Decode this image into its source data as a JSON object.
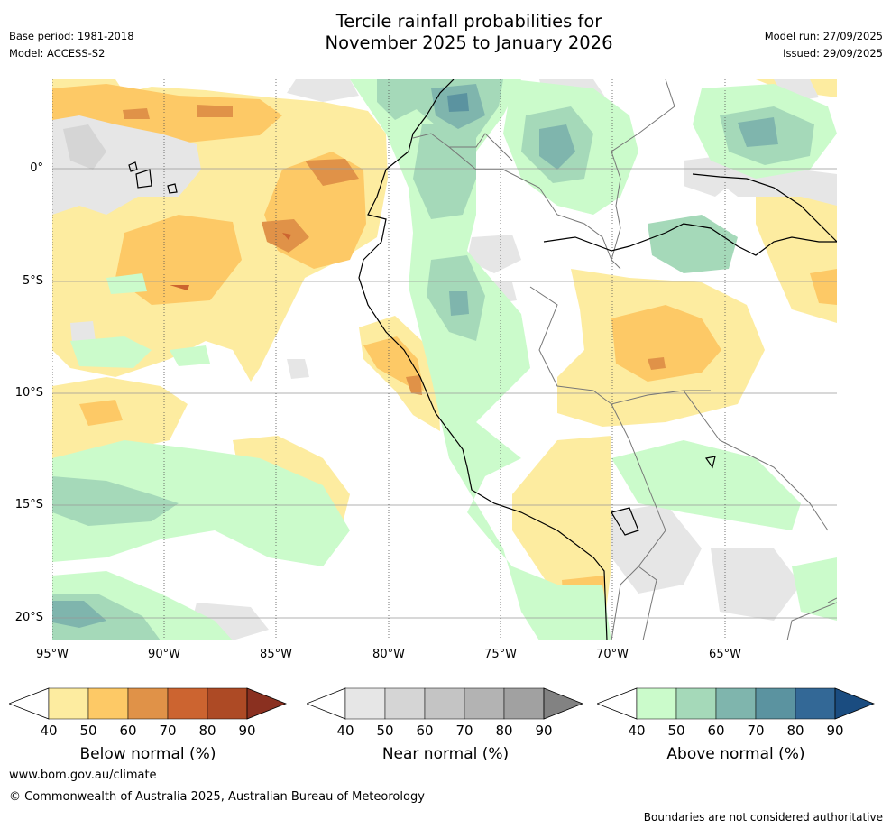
{
  "header": {
    "base_period": "Base period: 1981-2018",
    "model": "Model: ACCESS-S2",
    "title_line1": "Tercile rainfall probabilities for",
    "title_line2": "November 2025 to January 2026",
    "model_run": "Model run: 27/09/2025",
    "issued": "Issued: 29/09/2025"
  },
  "map": {
    "lat_labels": [
      "0°",
      "5°S",
      "10°S",
      "15°S",
      "20°S"
    ],
    "lon_labels": [
      "95°W",
      "90°W",
      "85°W",
      "80°W",
      "75°W",
      "70°W",
      "65°W"
    ]
  },
  "legend": {
    "below": {
      "title": "Below normal (%)",
      "ticks": [
        "40",
        "50",
        "60",
        "70",
        "80",
        "90"
      ],
      "colors": [
        "#fdeca0",
        "#fdc966",
        "#e09248",
        "#cc6430",
        "#ad4a25",
        "#8a3020"
      ]
    },
    "near": {
      "title": "Near normal (%)",
      "ticks": [
        "40",
        "50",
        "60",
        "70",
        "80",
        "90"
      ],
      "colors": [
        "#e6e6e6",
        "#d5d5d5",
        "#c4c4c4",
        "#b3b3b3",
        "#a1a1a1",
        "#828282"
      ]
    },
    "above": {
      "title": "Above normal (%)",
      "ticks": [
        "40",
        "50",
        "60",
        "70",
        "80",
        "90"
      ],
      "colors": [
        "#cbfbcb",
        "#a5d9b9",
        "#7fb5ad",
        "#5b93a0",
        "#336896",
        "#1a4c80"
      ]
    }
  },
  "footer": {
    "url": "www.bom.gov.au/climate",
    "copyright": "© Commonwealth of Australia 2025, Australian Bureau of Meteorology",
    "disclaimer": "Boundaries are not considered authoritative"
  }
}
